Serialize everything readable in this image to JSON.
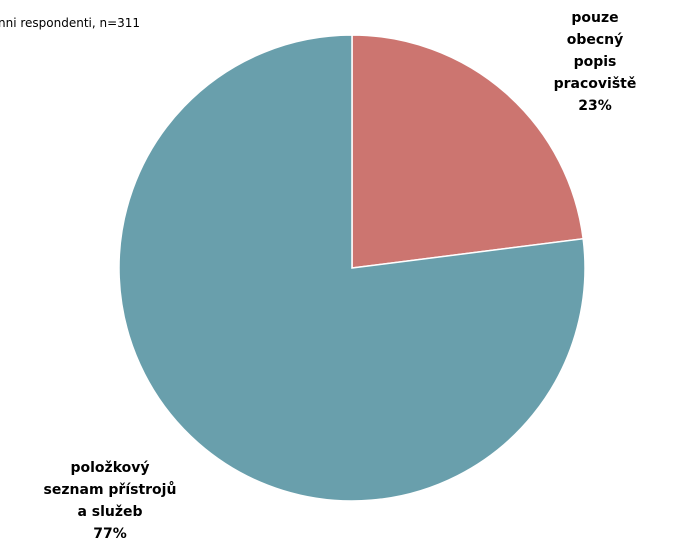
{
  "chart_data": {
    "type": "pie",
    "subtitle": "nni respondenti, n=311",
    "categories": [
      "pouze obecný\npopis pracoviště",
      "položkový\nseznam přístrojů\na služeb"
    ],
    "values": [
      23,
      77
    ],
    "value_labels": [
      "23%",
      "77%"
    ],
    "colors": [
      "#cc7570",
      "#699fac"
    ]
  }
}
